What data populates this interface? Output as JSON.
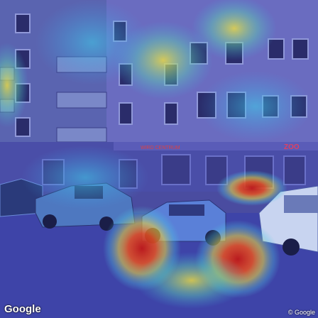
{
  "image": {
    "description_type": "street-view photo with attention heatmap overlay",
    "shop_signs": [
      "WIRD CENTRUM",
      "ZOO"
    ]
  },
  "watermarks": {
    "left": "Google",
    "right": "© Google"
  },
  "colors": {
    "heat_low": "#3b3fd8",
    "heat_mid": "#3fb8e0",
    "heat_warm": "#e8e040",
    "heat_hot": "#e03020"
  }
}
